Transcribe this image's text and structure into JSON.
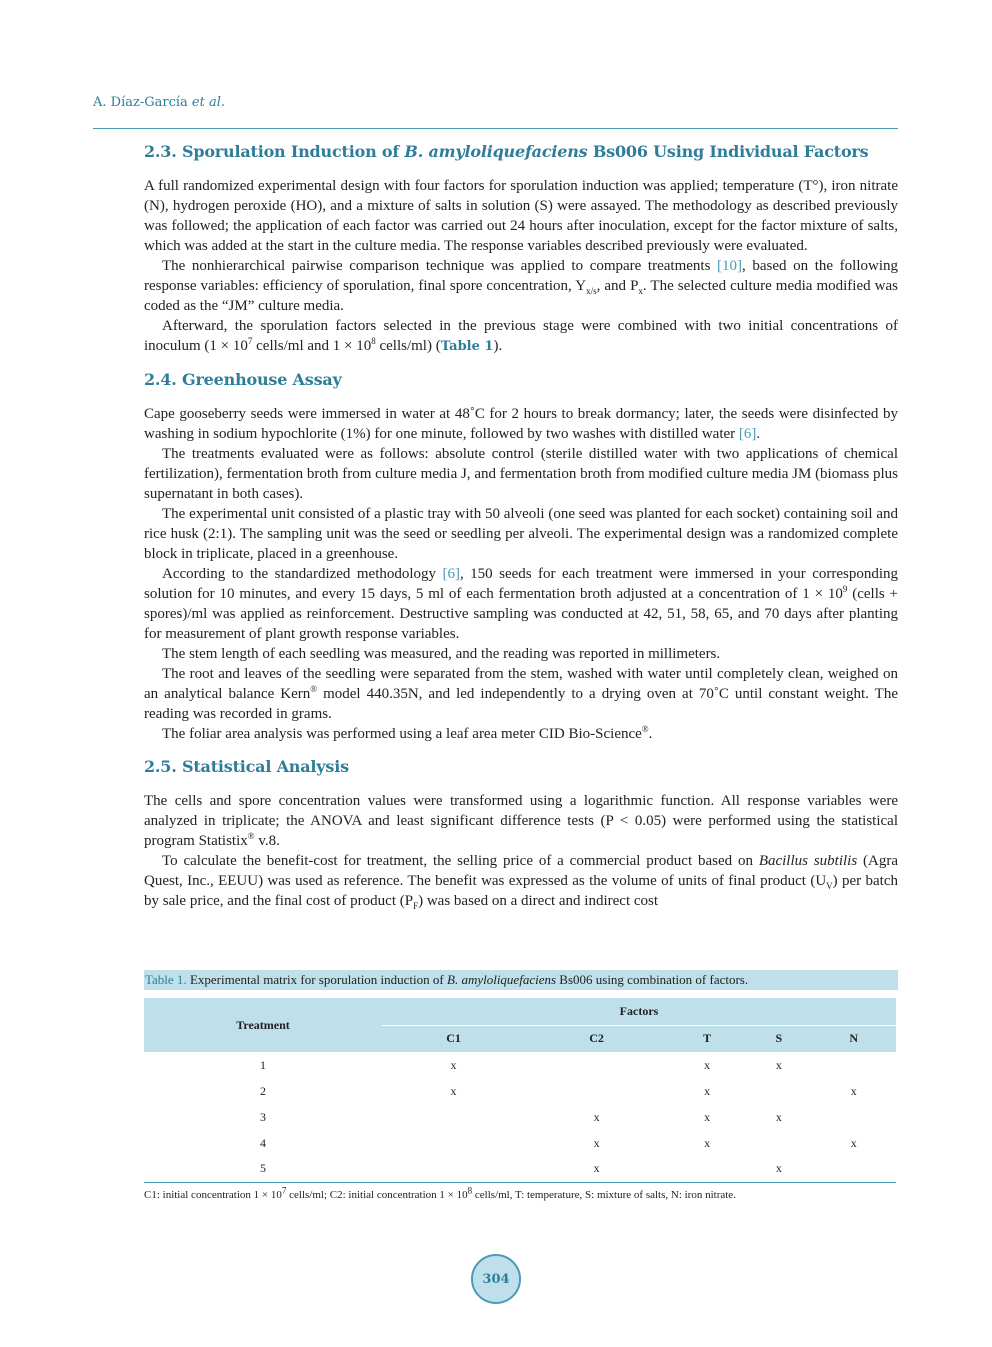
{
  "running_head": {
    "authors": "A. Díaz-García",
    "etal": "et al."
  },
  "sec23": {
    "title_pre": "2.3. Sporulation Induction of ",
    "title_italic": "B. amyloliquefaciens",
    "title_post": " Bs006 Using Individual Factors",
    "p1": "A full randomized experimental design with four factors for sporulation induction was applied; temperature (T°), iron nitrate (N), hydrogen peroxide (HO), and a mixture of salts in solution (S) were assayed. The methodology as described previously was followed; the application of each factor was carried out 24 hours after inoculation, except for the factor mixture of salts, which was added at the start in the culture media. The response variables described previously were evaluated.",
    "p2_a": "The nonhierarchical pairwise comparison technique was applied to compare treatments ",
    "p2_cite": "[10]",
    "p2_b": ", based on the following response variables: efficiency of sporulation, final spore concentration, Y",
    "p2_sub1": "x/s",
    "p2_c": ", and P",
    "p2_sub2": "x",
    "p2_d": ". The selected culture media modified was coded as the “JM” culture media.",
    "p3_a": "Afterward, the sporulation factors selected in the previous stage were combined with two initial concentrations of inoculum (1 × 10",
    "p3_sup1": "7",
    "p3_b": " cells/ml and 1 × 10",
    "p3_sup2": "8",
    "p3_c": " cells/ml) (",
    "p3_ref": "Table 1",
    "p3_d": ")."
  },
  "sec24": {
    "title": "2.4. Greenhouse Assay",
    "p1_a": "Cape gooseberry seeds were immersed in water at 48˚C for 2 hours to break dormancy; later, the seeds were disinfected by washing in sodium hypochlorite (1%) for one minute, followed by two washes with distilled water ",
    "p1_cite": "[6]",
    "p1_b": ".",
    "p2": "The treatments evaluated were as follows: absolute control (sterile distilled water with two applications of chemical fertilization), fermentation broth from culture media J, and fermentation broth from modified culture media JM (biomass plus supernatant in both cases).",
    "p3": "The experimental unit consisted of a plastic tray with 50 alveoli (one seed was planted for each socket) containing soil and rice husk (2:1). The sampling unit was the seed or seedling per alveoli. The experimental design was a randomized complete block in triplicate, placed in a greenhouse.",
    "p4_a": "According to the standardized methodology ",
    "p4_cite": "[6]",
    "p4_b": ", 150 seeds for each treatment were immersed in your corresponding solution for 10 minutes, and every 15 days, 5 ml of each fermentation broth adjusted at a concentration of 1 × 10",
    "p4_sup": "9",
    "p4_c": " (cells + spores)/ml was applied as reinforcement. Destructive sampling was conducted at 42, 51, 58, 65, and 70 days after planting for measurement of plant growth response variables.",
    "p5": "The stem length of each seedling was measured, and the reading was reported in millimeters.",
    "p6_a": "The root and leaves of the seedling were separated from the stem, washed with water until completely clean, weighed on an analytical balance Kern",
    "p6_sup": "®",
    "p6_b": " model 440.35N, and led independently to a drying oven at 70˚C until constant weight. The reading was recorded in grams.",
    "p7_a": "The foliar area analysis was performed using a leaf area meter CID Bio-Science",
    "p7_sup": "®",
    "p7_b": "."
  },
  "sec25": {
    "title": "2.5. Statistical Analysis",
    "p1_a": "The cells and spore concentration values were transformed using a logarithmic function. All response variables were analyzed in triplicate; the ANOVA and least significant difference tests (P < 0.05) were performed using the statistical program Statistix",
    "p1_sup": "®",
    "p1_b": " v.8.",
    "p2_a": "To calculate the benefit-cost for treatment, the selling price of a commercial product based on ",
    "p2_italic": "Bacillus subtilis",
    "p2_b": " (Agra Quest, Inc., EEUU) was used as reference. The benefit was expressed as the volume of units of final product (U",
    "p2_sub1": "V",
    "p2_c": ") per batch by sale price, and the final cost of product (P",
    "p2_sub2": "F",
    "p2_d": ") was based on a direct and indirect cost"
  },
  "table1": {
    "label": "Table 1.",
    "caption_a": " Experimental matrix for sporulation induction of ",
    "caption_italic": "B. amyloliquefaciens",
    "caption_b": " Bs006 using combination of factors.",
    "treatment_header": "Treatment",
    "factors_header": "Factors",
    "columns": [
      "C1",
      "C2",
      "T",
      "S",
      "N"
    ],
    "rows": [
      {
        "t": "1",
        "c1": "x",
        "c2": "",
        "T": "x",
        "S": "x",
        "N": ""
      },
      {
        "t": "2",
        "c1": "x",
        "c2": "",
        "T": "x",
        "S": "",
        "N": "x"
      },
      {
        "t": "3",
        "c1": "",
        "c2": "x",
        "T": "x",
        "S": "x",
        "N": ""
      },
      {
        "t": "4",
        "c1": "",
        "c2": "x",
        "T": "x",
        "S": "",
        "N": "x"
      },
      {
        "t": "5",
        "c1": "",
        "c2": "x",
        "T": "",
        "S": "x",
        "N": ""
      }
    ],
    "footnote_a": "C1: initial concentration 1 × 10",
    "footnote_sup1": "7",
    "footnote_b": " cells/ml; C2: initial concentration 1 × 10",
    "footnote_sup2": "8",
    "footnote_c": " cells/ml, T: temperature, S: mixture of salts, N: iron nitrate."
  },
  "page_number": "304"
}
